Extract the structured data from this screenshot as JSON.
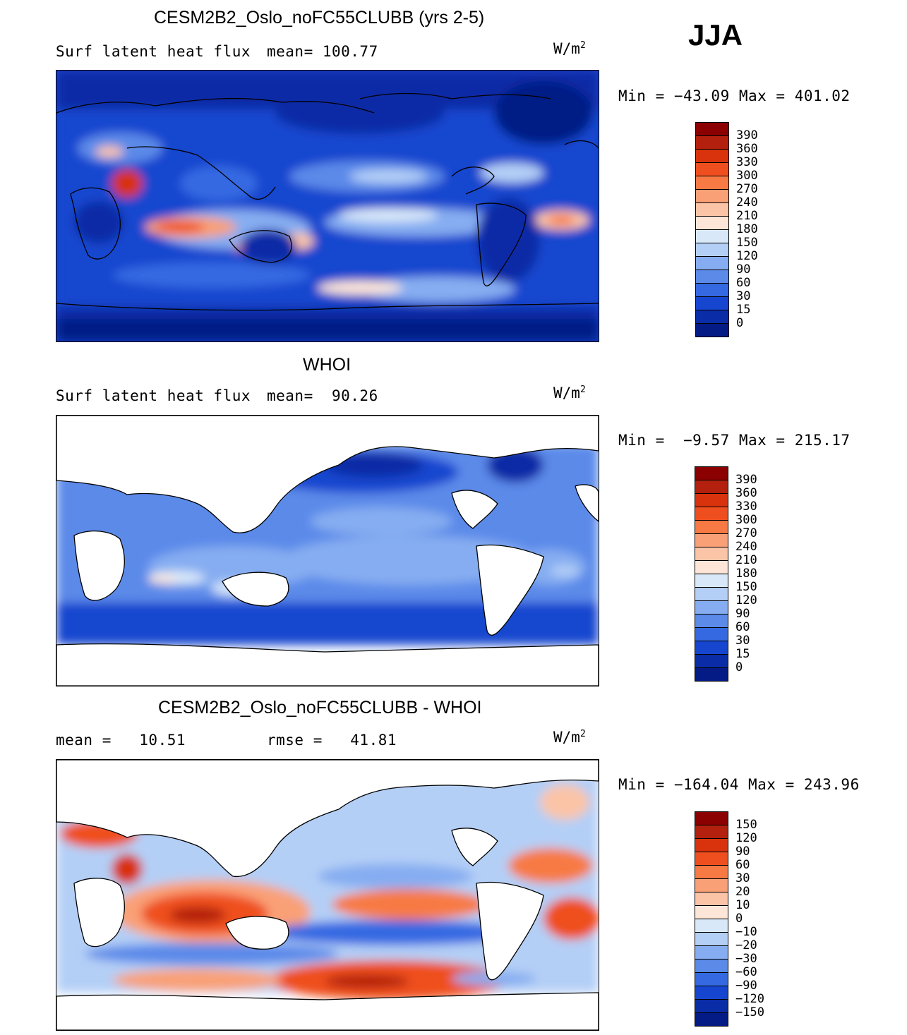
{
  "season": "JJA",
  "panels": [
    {
      "title": "CESM2B2_Oslo_noFC55CLUBB (yrs 2-5)",
      "left_label": "Surf latent heat flux",
      "right_label": "mean= 100.77",
      "units_base": "W/m",
      "units_exp": "2",
      "minmax": "Min = −43.09 Max = 401.02",
      "colorbar_labels": [
        "390",
        "360",
        "330",
        "300",
        "270",
        "240",
        "210",
        "180",
        "150",
        "120",
        "90",
        "60",
        "30",
        "15",
        "0"
      ]
    },
    {
      "title": "WHOI",
      "left_label": "Surf latent heat flux",
      "right_label": "mean=  90.26",
      "units_base": "W/m",
      "units_exp": "2",
      "minmax": "Min =  −9.57 Max = 215.17",
      "colorbar_labels": [
        "390",
        "360",
        "330",
        "300",
        "270",
        "240",
        "210",
        "180",
        "150",
        "120",
        "90",
        "60",
        "30",
        "15",
        "0"
      ]
    },
    {
      "title": "CESM2B2_Oslo_noFC55CLUBB - WHOI",
      "left_label": "mean =   10.51",
      "right_label": "rmse =   41.81",
      "units_base": "W/m",
      "units_exp": "2",
      "minmax": "Min = −164.04 Max = 243.96",
      "colorbar_labels": [
        "150",
        "120",
        "90",
        "60",
        "30",
        "20",
        "10",
        "0",
        "−10",
        "−20",
        "−30",
        "−60",
        "−90",
        "−120",
        "−150"
      ]
    }
  ],
  "colors": {
    "scale": [
      "#8b0000",
      "#b3200d",
      "#d8330c",
      "#ef4f1e",
      "#f77a45",
      "#f9a077",
      "#fbc4a7",
      "#fde6d8",
      "#d8e8f9",
      "#b4cff6",
      "#86adf1",
      "#5b8ae9",
      "#3569e2",
      "#1646cf",
      "#0a2ca6",
      "#041b85"
    ],
    "land": "#ffffff",
    "coast": "#000000"
  }
}
